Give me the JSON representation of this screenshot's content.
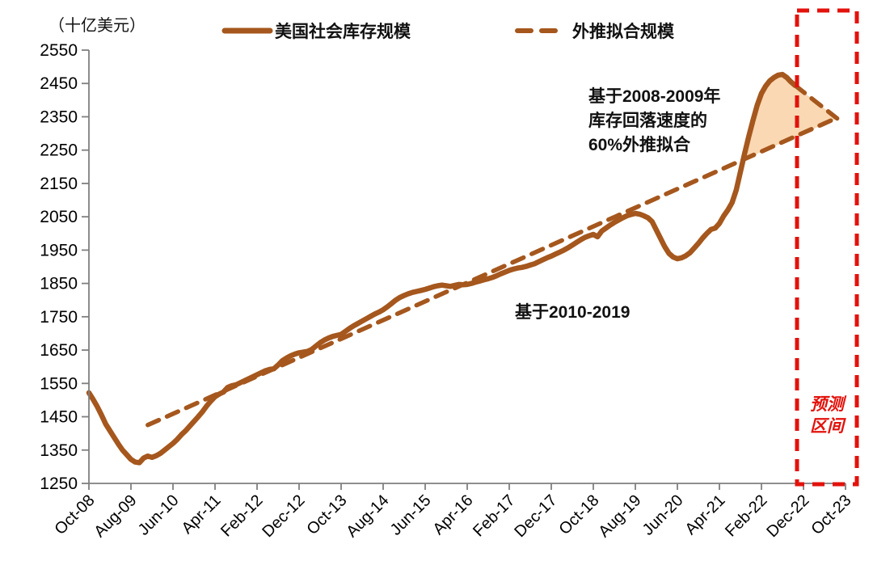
{
  "unit_label": "（十亿美元）",
  "legend": {
    "series1_label": "美国社会库存规模",
    "series2_label": "外推拟合规模"
  },
  "annotations": {
    "extrapolation_note_line1": "基于2008-2009年",
    "extrapolation_note_line2": "库存回落速度的",
    "extrapolation_note_line3": "60%外推拟合",
    "trend_note": "基于2010-2019",
    "forecast_label_line1": "预测",
    "forecast_label_line2": "区间"
  },
  "colors": {
    "line_brown": "#A5571D",
    "area_peach": "#FAD8B3",
    "forecast_red": "#E3120B",
    "axis_gray": "#7F7F7F",
    "text_black": "#000000"
  },
  "chart_data": {
    "type": "line",
    "title": "",
    "ylabel": "（十亿美元）",
    "ylim": [
      1250,
      2550
    ],
    "ytick_step": 100,
    "yticks": [
      1250,
      1350,
      1450,
      1550,
      1650,
      1750,
      1850,
      1950,
      2050,
      2150,
      2250,
      2350,
      2450,
      2550
    ],
    "x_unit": "months since Oct-2008",
    "xlim": [
      0,
      180
    ],
    "x_tick_months": [
      0,
      10,
      20,
      30,
      40,
      50,
      60,
      70,
      80,
      90,
      100,
      110,
      120,
      130,
      140,
      150,
      160,
      170,
      180
    ],
    "x_tick_labels": [
      "Oct-08",
      "Aug-09",
      "Jun-10",
      "Apr-11",
      "Feb-12",
      "Dec-12",
      "Oct-13",
      "Aug-14",
      "Jun-15",
      "Apr-16",
      "Feb-17",
      "Dec-17",
      "Oct-18",
      "Aug-19",
      "Jun-20",
      "Apr-21",
      "Feb-22",
      "Dec-22",
      "Oct-23"
    ],
    "grid": false,
    "legend_position": "top-center",
    "series": [
      {
        "name": "美国社会库存规模",
        "style": "solid",
        "points": [
          [
            0,
            1522
          ],
          [
            1,
            1502
          ],
          [
            2,
            1480
          ],
          [
            3,
            1455
          ],
          [
            4,
            1428
          ],
          [
            5,
            1408
          ],
          [
            6,
            1388
          ],
          [
            7,
            1368
          ],
          [
            8,
            1350
          ],
          [
            9,
            1336
          ],
          [
            10,
            1322
          ],
          [
            11,
            1314
          ],
          [
            12,
            1312
          ],
          [
            13,
            1326
          ],
          [
            14,
            1332
          ],
          [
            15,
            1328
          ],
          [
            16,
            1333
          ],
          [
            17,
            1340
          ],
          [
            18,
            1350
          ],
          [
            19,
            1360
          ],
          [
            20,
            1370
          ],
          [
            21,
            1382
          ],
          [
            22,
            1396
          ],
          [
            23,
            1408
          ],
          [
            24,
            1422
          ],
          [
            25,
            1436
          ],
          [
            26,
            1450
          ],
          [
            27,
            1465
          ],
          [
            28,
            1482
          ],
          [
            29,
            1497
          ],
          [
            30,
            1510
          ],
          [
            31,
            1518
          ],
          [
            32,
            1524
          ],
          [
            33,
            1538
          ],
          [
            34,
            1543
          ],
          [
            35,
            1546
          ],
          [
            36,
            1552
          ],
          [
            37,
            1558
          ],
          [
            38,
            1564
          ],
          [
            39,
            1570
          ],
          [
            40,
            1576
          ],
          [
            41,
            1582
          ],
          [
            42,
            1588
          ],
          [
            43,
            1592
          ],
          [
            44,
            1594
          ],
          [
            45,
            1605
          ],
          [
            46,
            1618
          ],
          [
            47,
            1626
          ],
          [
            48,
            1633
          ],
          [
            49,
            1638
          ],
          [
            50,
            1642
          ],
          [
            51,
            1644
          ],
          [
            52,
            1646
          ],
          [
            53,
            1652
          ],
          [
            54,
            1662
          ],
          [
            55,
            1672
          ],
          [
            56,
            1680
          ],
          [
            57,
            1686
          ],
          [
            58,
            1691
          ],
          [
            59,
            1694
          ],
          [
            60,
            1697
          ],
          [
            61,
            1706
          ],
          [
            62,
            1715
          ],
          [
            63,
            1723
          ],
          [
            64,
            1730
          ],
          [
            65,
            1737
          ],
          [
            66,
            1744
          ],
          [
            67,
            1751
          ],
          [
            68,
            1758
          ],
          [
            69,
            1764
          ],
          [
            70,
            1771
          ],
          [
            71,
            1780
          ],
          [
            72,
            1790
          ],
          [
            73,
            1800
          ],
          [
            74,
            1808
          ],
          [
            75,
            1814
          ],
          [
            76,
            1819
          ],
          [
            77,
            1823
          ],
          [
            78,
            1826
          ],
          [
            79,
            1829
          ],
          [
            80,
            1832
          ],
          [
            81,
            1836
          ],
          [
            82,
            1840
          ],
          [
            83,
            1843
          ],
          [
            84,
            1845
          ],
          [
            85,
            1843
          ],
          [
            86,
            1841
          ],
          [
            87,
            1844
          ],
          [
            88,
            1847
          ],
          [
            89,
            1846
          ],
          [
            90,
            1847
          ],
          [
            91,
            1850
          ],
          [
            92,
            1854
          ],
          [
            93,
            1857
          ],
          [
            94,
            1861
          ],
          [
            95,
            1864
          ],
          [
            96,
            1868
          ],
          [
            97,
            1873
          ],
          [
            98,
            1879
          ],
          [
            99,
            1884
          ],
          [
            100,
            1889
          ],
          [
            101,
            1893
          ],
          [
            102,
            1896
          ],
          [
            103,
            1898
          ],
          [
            104,
            1901
          ],
          [
            105,
            1905
          ],
          [
            106,
            1909
          ],
          [
            107,
            1915
          ],
          [
            108,
            1921
          ],
          [
            109,
            1927
          ],
          [
            110,
            1932
          ],
          [
            111,
            1938
          ],
          [
            112,
            1944
          ],
          [
            113,
            1950
          ],
          [
            114,
            1957
          ],
          [
            115,
            1965
          ],
          [
            116,
            1973
          ],
          [
            117,
            1981
          ],
          [
            118,
            1988
          ],
          [
            119,
            1993
          ],
          [
            120,
            1997
          ],
          [
            121,
            1990
          ],
          [
            122,
            2007
          ],
          [
            123,
            2016
          ],
          [
            124,
            2025
          ],
          [
            125,
            2033
          ],
          [
            126,
            2040
          ],
          [
            127,
            2047
          ],
          [
            128,
            2053
          ],
          [
            129,
            2057
          ],
          [
            130,
            2060
          ],
          [
            131,
            2058
          ],
          [
            132,
            2053
          ],
          [
            133,
            2047
          ],
          [
            134,
            2035
          ],
          [
            135,
            2010
          ],
          [
            136,
            1985
          ],
          [
            137,
            1960
          ],
          [
            138,
            1940
          ],
          [
            139,
            1929
          ],
          [
            140,
            1924
          ],
          [
            141,
            1927
          ],
          [
            142,
            1933
          ],
          [
            143,
            1942
          ],
          [
            144,
            1956
          ],
          [
            145,
            1970
          ],
          [
            146,
            1986
          ],
          [
            147,
            2000
          ],
          [
            148,
            2012
          ],
          [
            149,
            2016
          ],
          [
            150,
            2030
          ],
          [
            151,
            2052
          ],
          [
            152,
            2070
          ],
          [
            153,
            2092
          ],
          [
            154,
            2130
          ],
          [
            155,
            2185
          ],
          [
            156,
            2240
          ],
          [
            157,
            2292
          ],
          [
            158,
            2340
          ],
          [
            159,
            2385
          ],
          [
            160,
            2420
          ],
          [
            161,
            2442
          ],
          [
            162,
            2458
          ],
          [
            163,
            2468
          ],
          [
            164,
            2475
          ],
          [
            165,
            2477
          ],
          [
            166,
            2468
          ],
          [
            167,
            2455
          ],
          [
            168,
            2444
          ]
        ]
      },
      {
        "name": "外推拟合规模（基于2010-2019趋势）",
        "style": "dashed",
        "points": [
          [
            14,
            1425
          ],
          [
            178,
            2347
          ]
        ]
      },
      {
        "name": "外推拟合规模（基于2008-2009年库存回落速度的60%外推）",
        "style": "dashed",
        "points": [
          [
            168,
            2444
          ],
          [
            178,
            2345
          ]
        ]
      }
    ],
    "shaded_area": {
      "description": "peach wedge between solid line peak and extrapolated decline",
      "points": [
        [
          155.6,
          2220
        ],
        [
          156,
          2240
        ],
        [
          157,
          2292
        ],
        [
          158,
          2340
        ],
        [
          159,
          2385
        ],
        [
          160,
          2420
        ],
        [
          161,
          2442
        ],
        [
          162,
          2458
        ],
        [
          163,
          2468
        ],
        [
          164,
          2475
        ],
        [
          165,
          2477
        ],
        [
          166,
          2468
        ],
        [
          167,
          2455
        ],
        [
          168,
          2444
        ],
        [
          178,
          2345
        ]
      ]
    },
    "forecast_region": {
      "label": "预测区间",
      "x_from_month": 168.3,
      "x_to_month": 182.7
    }
  }
}
